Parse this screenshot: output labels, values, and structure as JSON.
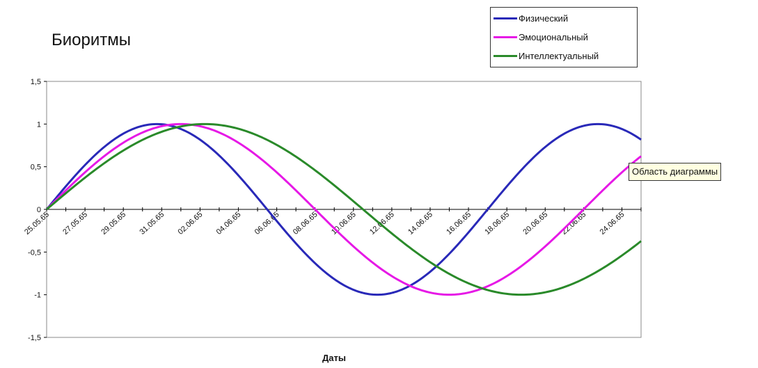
{
  "chart_data": {
    "type": "line",
    "title": "Биоритмы",
    "xlabel": "Даты",
    "ylabel": "",
    "ylim": [
      -1.5,
      1.5
    ],
    "yticks": [
      "1,5",
      "1",
      "0,5",
      "0",
      "-0,5",
      "-1",
      "-1,5"
    ],
    "ytick_values": [
      1.5,
      1,
      0.5,
      0,
      -0.5,
      -1,
      -1.5
    ],
    "x_start": "25.05.65",
    "x_end": "25.06.65",
    "x_tick_labels": [
      "25.05.65",
      "27.05.65",
      "29.05.65",
      "31.05.65",
      "02.06.65",
      "04.06.65",
      "06.06.65",
      "08.06.65",
      "10.06.65",
      "12.06.65",
      "14.06.65",
      "16.06.65",
      "18.06.65",
      "20.06.65",
      "22.06.65",
      "24.06.65"
    ],
    "grid": false,
    "legend_position": "top-right",
    "series": [
      {
        "name": "Физический",
        "color": "#2929b8",
        "period_days": 23,
        "phase": 0
      },
      {
        "name": "Эмоциональный",
        "color": "#e619e6",
        "period_days": 28,
        "phase": 0
      },
      {
        "name": "Интеллектуальный",
        "color": "#2a8a2a",
        "period_days": 33,
        "phase": 0
      }
    ]
  },
  "tooltip": "Область диаграммы"
}
